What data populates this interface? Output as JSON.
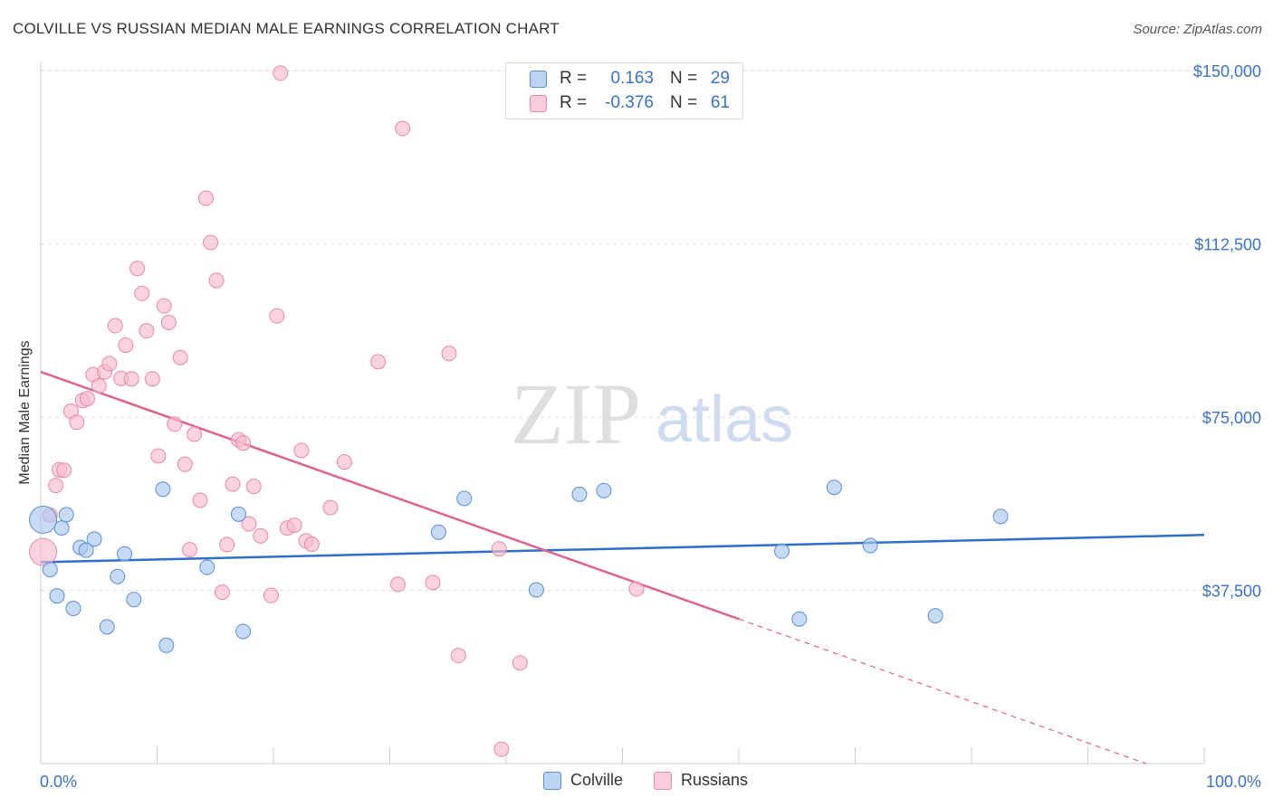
{
  "title": "COLVILLE VS RUSSIAN MEDIAN MALE EARNINGS CORRELATION CHART",
  "source": "Source: ZipAtlas.com",
  "watermark": {
    "zip": "ZIP",
    "atlas": "atlas"
  },
  "legend": {
    "rows": [
      {
        "r_label": "R =",
        "r_value": "0.163",
        "n_label": "N =",
        "n_value": "29"
      },
      {
        "r_label": "R =",
        "r_value": "-0.376",
        "n_label": "N =",
        "n_value": "61"
      }
    ]
  },
  "colors": {
    "colville_fill": "#aac8f0",
    "colville_stroke": "#5b8fd6",
    "colville_line": "#2f6fcc",
    "russians_fill": "#f7bccd",
    "russians_stroke": "#e889a6",
    "russians_line": "#e0628c",
    "axis_text": "#3b72c5",
    "grid": "#dddddd"
  },
  "chart_data": {
    "type": "scatter",
    "title": "COLVILLE VS RUSSIAN MEDIAN MALE EARNINGS CORRELATION CHART",
    "xlabel": "",
    "ylabel": "Median Male Earnings",
    "xlim": [
      0,
      100
    ],
    "ylim": [
      0,
      152000
    ],
    "x_tick_labels": [
      "0.0%",
      "100.0%"
    ],
    "y_ticks": [
      37500,
      75000,
      112500,
      150000
    ],
    "y_tick_labels": [
      "$37,500",
      "$75,000",
      "$112,500",
      "$150,000"
    ],
    "grid": true,
    "legend_position": "bottom",
    "series": [
      {
        "name": "Colville",
        "points": [
          {
            "x": 0.2,
            "y": 52800
          },
          {
            "x": 0.8,
            "y": 42000
          },
          {
            "x": 1.4,
            "y": 36300
          },
          {
            "x": 1.8,
            "y": 51000
          },
          {
            "x": 2.2,
            "y": 53900
          },
          {
            "x": 2.8,
            "y": 33600
          },
          {
            "x": 3.4,
            "y": 46800
          },
          {
            "x": 3.9,
            "y": 46200
          },
          {
            "x": 4.6,
            "y": 48600
          },
          {
            "x": 5.7,
            "y": 29600
          },
          {
            "x": 6.6,
            "y": 40500
          },
          {
            "x": 7.2,
            "y": 45400
          },
          {
            "x": 8.0,
            "y": 35500
          },
          {
            "x": 10.5,
            "y": 59400
          },
          {
            "x": 10.8,
            "y": 25600
          },
          {
            "x": 14.3,
            "y": 42500
          },
          {
            "x": 17.0,
            "y": 54000
          },
          {
            "x": 17.4,
            "y": 28600
          },
          {
            "x": 34.2,
            "y": 50100
          },
          {
            "x": 36.4,
            "y": 57400
          },
          {
            "x": 42.6,
            "y": 37600
          },
          {
            "x": 46.3,
            "y": 58300
          },
          {
            "x": 48.4,
            "y": 59100
          },
          {
            "x": 63.7,
            "y": 46000
          },
          {
            "x": 65.2,
            "y": 31300
          },
          {
            "x": 68.2,
            "y": 59800
          },
          {
            "x": 71.3,
            "y": 47200
          },
          {
            "x": 76.9,
            "y": 32000
          },
          {
            "x": 82.5,
            "y": 53500
          }
        ],
        "trend": {
          "x": [
            0,
            100
          ],
          "y": [
            43600,
            49500
          ]
        }
      },
      {
        "name": "Russians",
        "points": [
          {
            "x": 0.2,
            "y": 45800
          },
          {
            "x": 0.8,
            "y": 53800
          },
          {
            "x": 1.3,
            "y": 60200
          },
          {
            "x": 1.6,
            "y": 63600
          },
          {
            "x": 2.0,
            "y": 63500
          },
          {
            "x": 2.6,
            "y": 76300
          },
          {
            "x": 3.1,
            "y": 73900
          },
          {
            "x": 3.6,
            "y": 78600
          },
          {
            "x": 4.0,
            "y": 79000
          },
          {
            "x": 4.5,
            "y": 84200
          },
          {
            "x": 5.0,
            "y": 81800
          },
          {
            "x": 5.5,
            "y": 84800
          },
          {
            "x": 5.9,
            "y": 86600
          },
          {
            "x": 6.4,
            "y": 94800
          },
          {
            "x": 6.9,
            "y": 83400
          },
          {
            "x": 7.3,
            "y": 90600
          },
          {
            "x": 7.8,
            "y": 83300
          },
          {
            "x": 8.3,
            "y": 107200
          },
          {
            "x": 8.7,
            "y": 101800
          },
          {
            "x": 9.1,
            "y": 93700
          },
          {
            "x": 9.6,
            "y": 83300
          },
          {
            "x": 10.1,
            "y": 66600
          },
          {
            "x": 10.6,
            "y": 99100
          },
          {
            "x": 11.0,
            "y": 95500
          },
          {
            "x": 11.5,
            "y": 73500
          },
          {
            "x": 12.0,
            "y": 87900
          },
          {
            "x": 12.4,
            "y": 64800
          },
          {
            "x": 12.8,
            "y": 46300
          },
          {
            "x": 13.2,
            "y": 71300
          },
          {
            "x": 13.7,
            "y": 57000
          },
          {
            "x": 14.2,
            "y": 122400
          },
          {
            "x": 14.6,
            "y": 112800
          },
          {
            "x": 15.1,
            "y": 104600
          },
          {
            "x": 15.6,
            "y": 37100
          },
          {
            "x": 16.0,
            "y": 47400
          },
          {
            "x": 16.5,
            "y": 60500
          },
          {
            "x": 17.0,
            "y": 70100
          },
          {
            "x": 17.4,
            "y": 69400
          },
          {
            "x": 17.9,
            "y": 51900
          },
          {
            "x": 18.3,
            "y": 60000
          },
          {
            "x": 18.9,
            "y": 49300
          },
          {
            "x": 19.8,
            "y": 36400
          },
          {
            "x": 20.3,
            "y": 96900
          },
          {
            "x": 20.6,
            "y": 149500
          },
          {
            "x": 21.2,
            "y": 51000
          },
          {
            "x": 21.8,
            "y": 51600
          },
          {
            "x": 22.4,
            "y": 67800
          },
          {
            "x": 22.8,
            "y": 48200
          },
          {
            "x": 23.3,
            "y": 47500
          },
          {
            "x": 24.9,
            "y": 55400
          },
          {
            "x": 26.1,
            "y": 65300
          },
          {
            "x": 29.0,
            "y": 87000
          },
          {
            "x": 30.7,
            "y": 38800
          },
          {
            "x": 31.1,
            "y": 137500
          },
          {
            "x": 33.7,
            "y": 39200
          },
          {
            "x": 35.1,
            "y": 88800
          },
          {
            "x": 35.9,
            "y": 23400
          },
          {
            "x": 39.4,
            "y": 46500
          },
          {
            "x": 39.6,
            "y": 3100
          },
          {
            "x": 41.2,
            "y": 21800
          },
          {
            "x": 51.2,
            "y": 37800
          }
        ],
        "trend": {
          "x": [
            0,
            60
          ],
          "y": [
            84800,
            31300
          ]
        },
        "trend_extension": {
          "x": [
            60,
            95
          ],
          "y": [
            31300,
            0
          ]
        }
      }
    ]
  },
  "bottom_legend": [
    "Colville",
    "Russians"
  ]
}
